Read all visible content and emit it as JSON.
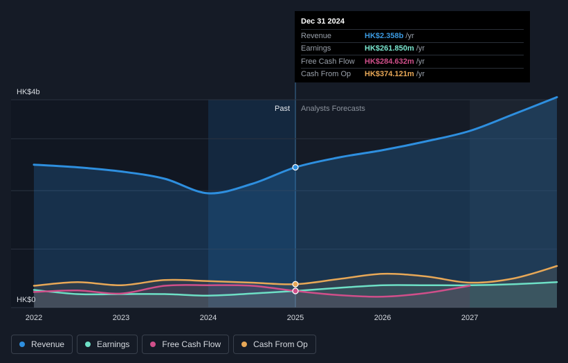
{
  "tooltip": {
    "date": "Dec 31 2024",
    "rows": [
      {
        "label": "Revenue",
        "value": "HK$2.358b",
        "unit": "/yr",
        "color": "#3b9ae1"
      },
      {
        "label": "Earnings",
        "value": "HK$261.850m",
        "unit": "/yr",
        "color": "#7ae6cf"
      },
      {
        "label": "Free Cash Flow",
        "value": "HK$284.632m",
        "unit": "/yr",
        "color": "#d04f8a"
      },
      {
        "label": "Cash From Op",
        "value": "HK$374.121m",
        "unit": "/yr",
        "color": "#e8a857"
      }
    ]
  },
  "labels": {
    "past": "Past",
    "forecast": "Analysts Forecasts"
  },
  "legend": [
    {
      "label": "Revenue",
      "color": "#2e8fdf"
    },
    {
      "label": "Earnings",
      "color": "#6ee0c6"
    },
    {
      "label": "Free Cash Flow",
      "color": "#d04f8a"
    },
    {
      "label": "Cash From Op",
      "color": "#e8a857"
    }
  ],
  "chart_data": {
    "type": "line",
    "y_axis_labels": [
      "HK$4b",
      "HK$0"
    ],
    "ylim": [
      0,
      4.0
    ],
    "y_unit": "HK$ billions",
    "xlim": [
      2022.0,
      2028.0
    ],
    "x_ticks": [
      2022,
      2023,
      2024,
      2025,
      2026,
      2027
    ],
    "grid": true,
    "past_end": 2025.0,
    "highlight_start": 2024.0,
    "forecast_start": 2027.0,
    "marker_x": 2025.0,
    "series": [
      {
        "name": "Revenue",
        "color": "#2e8fdf",
        "x": [
          2022.0,
          2022.5,
          2023.0,
          2023.5,
          2024.0,
          2024.5,
          2025.0,
          2025.5,
          2026.0,
          2026.5,
          2027.0,
          2027.5,
          2028.0
        ],
        "y": [
          2.75,
          2.7,
          2.62,
          2.48,
          2.2,
          2.38,
          2.7,
          2.89,
          3.03,
          3.2,
          3.4,
          3.72,
          4.05
        ]
      },
      {
        "name": "Earnings",
        "color": "#6ee0c6",
        "x": [
          2022.0,
          2022.5,
          2023.0,
          2023.5,
          2024.0,
          2024.5,
          2025.0,
          2025.5,
          2026.0,
          2026.5,
          2027.0,
          2027.5,
          2028.0
        ],
        "y": [
          0.34,
          0.26,
          0.26,
          0.26,
          0.23,
          0.27,
          0.32,
          0.38,
          0.43,
          0.43,
          0.43,
          0.45,
          0.49
        ]
      },
      {
        "name": "Free Cash Flow",
        "color": "#d04f8a",
        "x": [
          2022.0,
          2022.5,
          2023.0,
          2023.5,
          2024.0,
          2024.5,
          2025.0,
          2025.5,
          2026.0,
          2026.5,
          2027.0
        ],
        "y": [
          0.3,
          0.33,
          0.27,
          0.42,
          0.43,
          0.42,
          0.32,
          0.24,
          0.21,
          0.28,
          0.42
        ]
      },
      {
        "name": "Cash From Op",
        "color": "#e8a857",
        "x": [
          2022.0,
          2022.5,
          2023.0,
          2023.5,
          2024.0,
          2024.5,
          2025.0,
          2025.5,
          2026.0,
          2026.5,
          2027.0,
          2027.5,
          2028.0
        ],
        "y": [
          0.42,
          0.49,
          0.43,
          0.53,
          0.51,
          0.48,
          0.45,
          0.55,
          0.65,
          0.6,
          0.48,
          0.56,
          0.8
        ]
      }
    ]
  }
}
